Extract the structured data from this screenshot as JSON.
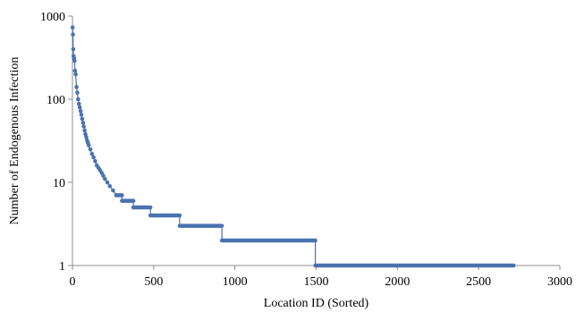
{
  "chart_data": {
    "type": "scatter",
    "xlabel": "Location  ID (Sorted)",
    "ylabel": "Number of Endogenous  Infection",
    "x_range": [
      0,
      3000
    ],
    "y_range": [
      1,
      1000
    ],
    "y_scale": "log",
    "x_ticks": [
      0,
      500,
      1000,
      1500,
      2000,
      2500,
      3000
    ],
    "x_tick_labels": [
      "0",
      "500",
      "1000",
      "1500",
      "2000",
      "2500",
      "3000"
    ],
    "y_ticks": [
      1,
      10,
      100,
      1000
    ],
    "y_tick_labels": [
      "1",
      "10",
      "100",
      "1000"
    ],
    "grid": false,
    "legend": "none",
    "series_color": "#4a72b0",
    "points": [
      [
        1,
        730
      ],
      [
        3,
        600
      ],
      [
        5,
        400
      ],
      [
        7,
        330
      ],
      [
        10,
        310
      ],
      [
        13,
        290
      ],
      [
        16,
        220
      ],
      [
        20,
        200
      ],
      [
        25,
        140
      ],
      [
        30,
        120
      ],
      [
        35,
        100
      ],
      [
        40,
        88
      ],
      [
        45,
        80
      ],
      [
        50,
        72
      ],
      [
        55,
        65
      ],
      [
        60,
        58
      ],
      [
        65,
        52
      ],
      [
        70,
        47
      ],
      [
        75,
        42
      ],
      [
        80,
        38
      ],
      [
        85,
        35
      ],
      [
        90,
        32
      ],
      [
        95,
        30
      ],
      [
        100,
        28
      ],
      [
        110,
        25
      ],
      [
        120,
        22
      ],
      [
        130,
        20
      ],
      [
        140,
        18
      ],
      [
        150,
        16
      ],
      [
        160,
        15
      ],
      [
        170,
        14
      ],
      [
        180,
        13
      ],
      [
        190,
        12
      ],
      [
        200,
        11
      ],
      [
        215,
        10
      ],
      [
        230,
        9
      ],
      [
        250,
        8
      ],
      [
        270,
        7
      ]
    ],
    "steps": [
      {
        "value": 7,
        "x_start": 270,
        "x_end": 305
      },
      {
        "value": 6,
        "x_start": 305,
        "x_end": 375
      },
      {
        "value": 5,
        "x_start": 375,
        "x_end": 480
      },
      {
        "value": 4,
        "x_start": 480,
        "x_end": 660
      },
      {
        "value": 3,
        "x_start": 660,
        "x_end": 920
      },
      {
        "value": 2,
        "x_start": 920,
        "x_end": 1495
      },
      {
        "value": 1,
        "x_start": 1495,
        "x_end": 2715
      }
    ]
  }
}
